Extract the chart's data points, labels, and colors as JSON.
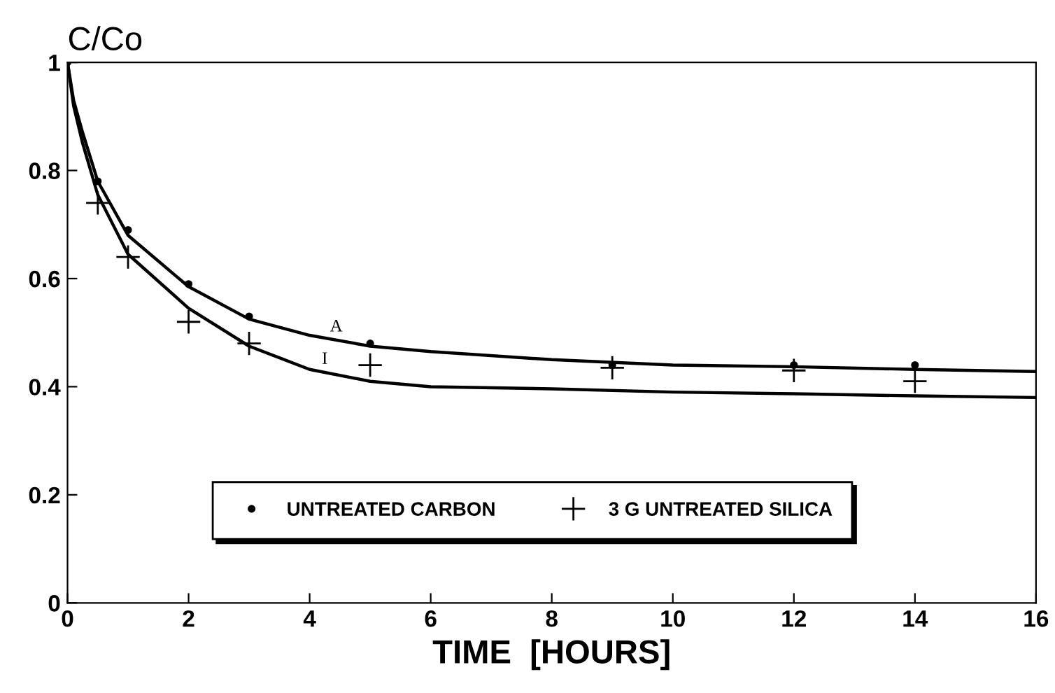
{
  "chart_data": {
    "type": "scatter",
    "ylabel": "C/Co",
    "xlabel": "TIME  [HOURS]",
    "xlim": [
      0,
      16
    ],
    "ylim": [
      0,
      1
    ],
    "xticks": [
      0,
      2,
      4,
      6,
      8,
      10,
      12,
      14,
      16
    ],
    "yticks": [
      0,
      0.2,
      0.4,
      0.6,
      0.8,
      1
    ],
    "grid": false,
    "legend": "bottom",
    "series": [
      {
        "name": "UNTREATED CARBON",
        "marker": "circle",
        "color": "#000000",
        "x": [
          0,
          0.5,
          1,
          2,
          3,
          5,
          9,
          12,
          14
        ],
        "values": [
          1,
          0.78,
          0.69,
          0.59,
          0.53,
          0.48,
          0.44,
          0.44,
          0.44
        ]
      },
      {
        "name": "3 G UNTREATED SILICA",
        "marker": "cross",
        "color": "#000000",
        "x": [
          0.5,
          1,
          2,
          3,
          5,
          9,
          12,
          14
        ],
        "values": [
          0.74,
          0.64,
          0.52,
          0.48,
          0.44,
          0.435,
          0.43,
          0.41
        ]
      },
      {
        "type": "line",
        "marker": "none",
        "color": "#000000",
        "x": [
          0,
          0.1,
          0.25,
          0.5,
          1,
          2,
          3,
          4,
          5,
          6,
          8,
          10,
          12,
          14,
          16
        ],
        "values": [
          1,
          0.93,
          0.87,
          0.78,
          0.68,
          0.585,
          0.525,
          0.495,
          0.475,
          0.465,
          0.45,
          0.44,
          0.437,
          0.432,
          0.428
        ]
      },
      {
        "type": "line",
        "marker": "none",
        "color": "#000000",
        "x": [
          0,
          0.1,
          0.25,
          0.5,
          1,
          2,
          3,
          4,
          5,
          6,
          8,
          10,
          12,
          14,
          16
        ],
        "values": [
          1,
          0.92,
          0.85,
          0.755,
          0.645,
          0.545,
          0.475,
          0.432,
          0.41,
          0.4,
          0.396,
          0.39,
          0.387,
          0.383,
          0.38
        ]
      }
    ],
    "annotations": [
      "A",
      "I"
    ]
  }
}
